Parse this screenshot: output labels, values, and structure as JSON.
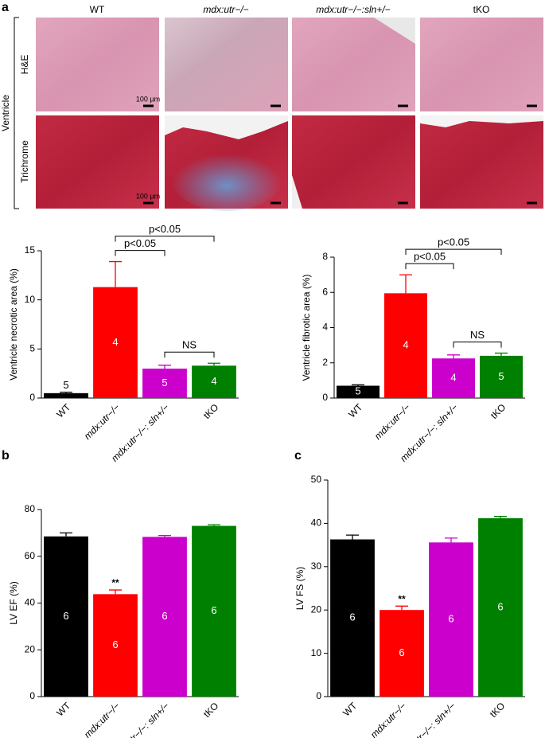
{
  "panel_labels": [
    "a",
    "b",
    "c"
  ],
  "histology": {
    "columns": [
      "WT",
      "mdx:utr−/−",
      "mdx:utr−/−:sln+/−",
      "tKO"
    ],
    "rows": [
      "H&E",
      "Trichrome"
    ],
    "group_label": "Ventricle",
    "scale_bar_label": "100 µm"
  },
  "chart_data": [
    {
      "type": "bar",
      "ylabel": "Ventricle necrotic area (%)",
      "categories": [
        "WT",
        "mdx:utr−/−",
        "mdx:utr−/−: sln+/−",
        "tKO"
      ],
      "values": [
        0.5,
        11.3,
        3.0,
        3.3
      ],
      "errors": [
        0.1,
        2.6,
        0.35,
        0.25
      ],
      "colors": [
        "#000000",
        "#ff0000",
        "#cc00cc",
        "#008000"
      ],
      "n_labels": [
        "5",
        "4",
        "5",
        "4"
      ],
      "ylim": [
        0,
        15
      ],
      "yticks": [
        0,
        5,
        10,
        15
      ],
      "comparisons": [
        {
          "from": 2,
          "to": 3,
          "label": "NS"
        },
        {
          "from": 1,
          "to": 2,
          "label": "p<0.05"
        },
        {
          "from": 1,
          "to": 3,
          "label": "p<0.05"
        }
      ]
    },
    {
      "type": "bar",
      "ylabel": "Ventricle fibrotic area (%)",
      "categories": [
        "WT",
        "mdx:utr−/−",
        "mdx:utr−/−: sln+/−",
        "tKO"
      ],
      "values": [
        0.7,
        5.95,
        2.25,
        2.4
      ],
      "errors": [
        0.05,
        1.05,
        0.2,
        0.15
      ],
      "colors": [
        "#000000",
        "#ff0000",
        "#cc00cc",
        "#008000"
      ],
      "n_labels": [
        "5",
        "4",
        "4",
        "5"
      ],
      "ylim": [
        0,
        8
      ],
      "yticks": [
        0,
        2,
        4,
        6,
        8
      ],
      "comparisons": [
        {
          "from": 2,
          "to": 3,
          "label": "NS"
        },
        {
          "from": 1,
          "to": 2,
          "label": "p<0.05"
        },
        {
          "from": 1,
          "to": 3,
          "label": "p<0.05"
        }
      ]
    },
    {
      "type": "bar",
      "ylabel": "LV EF (%)",
      "categories": [
        "WT",
        "mdx:utr−/−",
        "mdx:utr−/−: sln+/−",
        "tKO"
      ],
      "values": [
        68.5,
        43.8,
        68.3,
        73.0
      ],
      "errors": [
        1.5,
        1.8,
        0.6,
        0.5
      ],
      "colors": [
        "#000000",
        "#ff0000",
        "#cc00cc",
        "#008000"
      ],
      "n_labels": [
        "6",
        "6",
        "6",
        "6"
      ],
      "ylim": [
        0,
        80
      ],
      "yticks": [
        0,
        20,
        40,
        60,
        80
      ],
      "annotations": [
        {
          "index": 1,
          "text": "**"
        }
      ]
    },
    {
      "type": "bar",
      "ylabel": "LV FS (%)",
      "categories": [
        "WT",
        "mdx:utr−/−",
        "mdx:utr−/−: sln+/−",
        "tKO"
      ],
      "values": [
        36.3,
        20.0,
        35.6,
        41.2
      ],
      "errors": [
        1.0,
        0.9,
        1.0,
        0.4
      ],
      "colors": [
        "#000000",
        "#ff0000",
        "#cc00cc",
        "#008000"
      ],
      "n_labels": [
        "6",
        "6",
        "6",
        "6"
      ],
      "ylim": [
        0,
        50
      ],
      "yticks": [
        0,
        10,
        20,
        30,
        40,
        50
      ],
      "annotations": [
        {
          "index": 1,
          "text": "**"
        }
      ]
    }
  ]
}
